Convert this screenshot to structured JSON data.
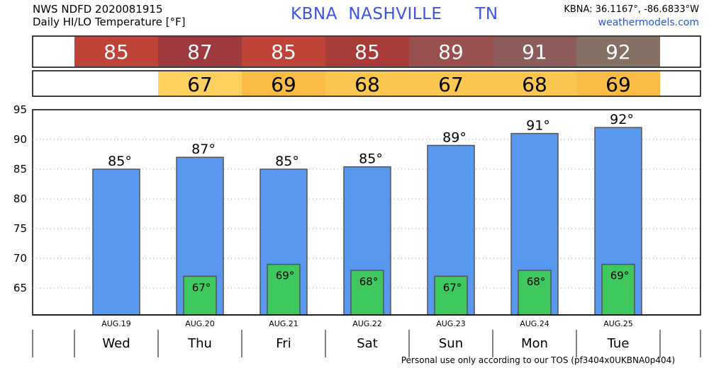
{
  "header": {
    "line1": "NWS NDFD 2020081915",
    "line2": "Daily HI/LO Temperature [°F]",
    "location": "KBNA  NASHVILLE      TN",
    "coords": "KBNA: 36.1167°, -86.6833°W",
    "site": "weathermodels.com"
  },
  "footer": "Personal use only according to our TOS (pf3404x0UKBNA0p404)",
  "colors": {
    "hi_strip": [
      "#be4338",
      "#9e3a3e",
      "#be4338",
      "#a83a38",
      "#9b5050",
      "#8c5c5a",
      "#857063"
    ],
    "lo_strip": [
      "#fdd15f",
      "#fbbc45",
      "#fcc751",
      "#fcc652",
      "#fcc652",
      "#fbbc45"
    ],
    "hi_bar": "#5899ef",
    "lo_bar": "#3ec85e"
  },
  "chart_data": {
    "type": "bar",
    "categories": [
      "Wed",
      "Thu",
      "Fri",
      "Sat",
      "Sun",
      "Mon",
      "Tue"
    ],
    "dates": [
      "AUG.19",
      "AUG.20",
      "AUG.21",
      "AUG.22",
      "AUG.23",
      "AUG.24",
      "AUG.25"
    ],
    "series": [
      {
        "values": [
          85,
          87,
          85,
          85.4,
          89,
          91,
          92
        ]
      },
      {
        "values": [
          null,
          67,
          69,
          68,
          67,
          68,
          69
        ]
      }
    ],
    "hi_labels": [
      "85°",
      "87°",
      "85°",
      "85°",
      "89°",
      "91°",
      "92°"
    ],
    "lo_labels": [
      "",
      "67°",
      "69°",
      "68°",
      "67°",
      "68°",
      "69°"
    ],
    "hi_strip_labels": [
      "85",
      "87",
      "85",
      "85",
      "89",
      "91",
      "92"
    ],
    "lo_strip_labels": [
      "",
      "67",
      "69",
      "68",
      "67",
      "68",
      "69"
    ],
    "ylim": [
      60.5,
      95
    ],
    "yticks": [
      65,
      70,
      75,
      80,
      85,
      90,
      95
    ],
    "grid": true
  }
}
